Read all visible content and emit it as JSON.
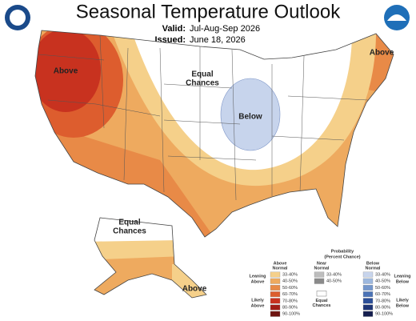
{
  "header": {
    "title": "Seasonal Temperature Outlook",
    "valid_label": "Valid:",
    "valid": "Jul-Aug-Sep 2026",
    "issued_label": "Issued:",
    "issued": "June 18, 2026"
  },
  "map_labels": {
    "northwest": "Above",
    "center_line1": "Equal",
    "center_line2": "Chances",
    "midwest": "Below",
    "northeast": "Above",
    "alaska_line1": "Equal",
    "alaska_line2": "Chances",
    "alaska_southeast": "Above"
  },
  "legend": {
    "title_line1": "Probability",
    "title_line2": "(Percent Chance)",
    "above": {
      "header": [
        "Above",
        "Normal"
      ],
      "leaning": [
        "Leaning",
        "Above"
      ],
      "likely": [
        "Likely",
        "Above"
      ],
      "items": [
        {
          "label": "33-40%",
          "color": "#f5d08a"
        },
        {
          "label": "40-50%",
          "color": "#eeaa5f"
        },
        {
          "label": "50-60%",
          "color": "#e88a47"
        },
        {
          "label": "60-70%",
          "color": "#dd5d2e"
        },
        {
          "label": "70-80%",
          "color": "#c8321f"
        },
        {
          "label": "80-90%",
          "color": "#a01d16"
        },
        {
          "label": "90-100%",
          "color": "#6e1410"
        }
      ]
    },
    "near": {
      "header": [
        "Near",
        "Normal"
      ],
      "items": [
        {
          "label": "33-40%",
          "color": "#bdbdbd"
        },
        {
          "label": "40-50%",
          "color": "#8a8a8a"
        }
      ],
      "equal": [
        "Equal",
        "Chances"
      ]
    },
    "below": {
      "header": [
        "Below",
        "Normal"
      ],
      "leaning": [
        "Leaning",
        "Below"
      ],
      "likely": [
        "Likely",
        "Below"
      ],
      "items": [
        {
          "label": "33-40%",
          "color": "#c7d4ec"
        },
        {
          "label": "40-50%",
          "color": "#9db8de"
        },
        {
          "label": "50-60%",
          "color": "#7496cc"
        },
        {
          "label": "60-70%",
          "color": "#4b73b6"
        },
        {
          "label": "70-80%",
          "color": "#2c4f98"
        },
        {
          "label": "80-90%",
          "color": "#1e3575"
        },
        {
          "label": "90-100%",
          "color": "#151e4f"
        }
      ]
    }
  }
}
